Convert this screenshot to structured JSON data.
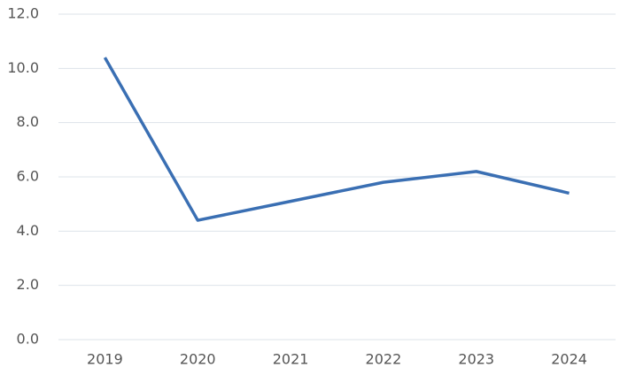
{
  "chart_data": {
    "type": "line",
    "categories": [
      "2019",
      "2020",
      "2021",
      "2022",
      "2023",
      "2024"
    ],
    "series": [
      {
        "color": "#3a6fb3",
        "values": [
          10.4,
          4.4,
          5.1,
          5.8,
          6.2,
          5.4
        ]
      }
    ],
    "ylim": [
      0,
      12
    ],
    "yticks": [
      {
        "value": 0,
        "label": "0.0"
      },
      {
        "value": 2,
        "label": "2.0"
      },
      {
        "value": 4,
        "label": "4.0"
      },
      {
        "value": 6,
        "label": "6.0"
      },
      {
        "value": 8,
        "label": "8.0"
      },
      {
        "value": 10,
        "label": "10.0"
      },
      {
        "value": 12,
        "label": "12.0"
      }
    ],
    "grid": true
  }
}
